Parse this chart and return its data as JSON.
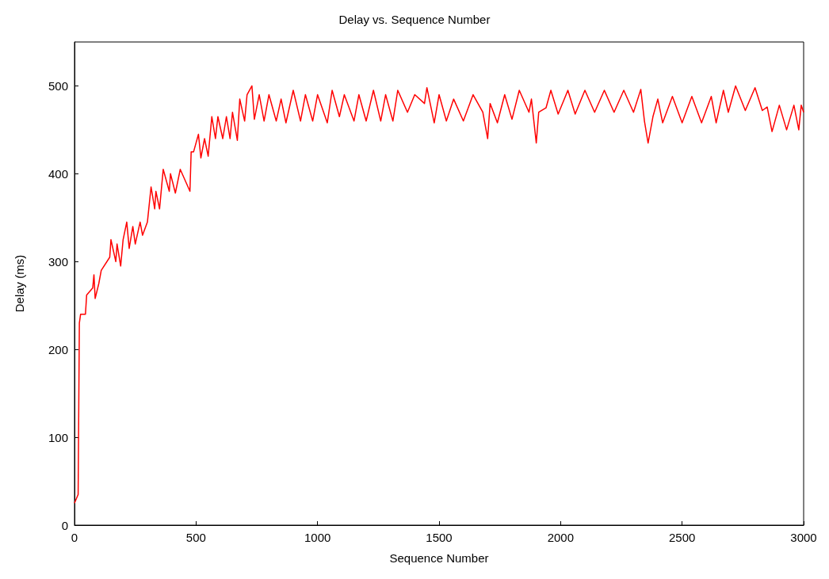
{
  "chart_data": {
    "type": "line",
    "title": "Delay vs. Sequence Number",
    "xlabel": "Sequence Number",
    "ylabel": "Delay (ms)",
    "xlim": [
      0,
      3000
    ],
    "xticks": [
      0,
      500,
      1000,
      1500,
      2000,
      2500,
      3000
    ],
    "ylim": [
      0,
      550
    ],
    "yticks": [
      0,
      100,
      200,
      300,
      400,
      500
    ],
    "grid": false,
    "marker": "none",
    "line_style": "solid",
    "series": [
      {
        "color": "#ff0000",
        "x": [
          0,
          15,
          20,
          25,
          45,
          50,
          75,
          80,
          85,
          100,
          110,
          145,
          150,
          170,
          175,
          190,
          200,
          215,
          225,
          240,
          250,
          270,
          280,
          300,
          315,
          330,
          335,
          350,
          365,
          390,
          395,
          415,
          435,
          475,
          480,
          490,
          510,
          520,
          535,
          550,
          565,
          580,
          590,
          610,
          625,
          640,
          650,
          670,
          680,
          700,
          710,
          730,
          740,
          760,
          780,
          800,
          830,
          850,
          870,
          900,
          930,
          950,
          980,
          1000,
          1040,
          1060,
          1090,
          1110,
          1150,
          1170,
          1200,
          1230,
          1260,
          1280,
          1310,
          1330,
          1370,
          1400,
          1440,
          1450,
          1480,
          1500,
          1530,
          1560,
          1600,
          1640,
          1680,
          1700,
          1710,
          1740,
          1770,
          1800,
          1830,
          1870,
          1880,
          1900,
          1910,
          1940,
          1960,
          1990,
          2030,
          2060,
          2100,
          2140,
          2180,
          2220,
          2260,
          2300,
          2330,
          2345,
          2360,
          2380,
          2400,
          2420,
          2460,
          2500,
          2540,
          2580,
          2620,
          2640,
          2670,
          2690,
          2720,
          2760,
          2800,
          2830,
          2850,
          2870,
          2900,
          2930,
          2960,
          2980,
          2990,
          3000
        ],
        "values": [
          25,
          35,
          230,
          240,
          240,
          262,
          270,
          285,
          258,
          275,
          290,
          305,
          325,
          300,
          320,
          295,
          325,
          345,
          315,
          340,
          320,
          345,
          330,
          345,
          385,
          360,
          380,
          360,
          405,
          380,
          400,
          378,
          405,
          380,
          425,
          425,
          445,
          418,
          440,
          420,
          465,
          440,
          465,
          440,
          465,
          440,
          470,
          438,
          485,
          460,
          490,
          500,
          462,
          490,
          460,
          490,
          460,
          485,
          458,
          495,
          460,
          490,
          460,
          490,
          458,
          495,
          465,
          490,
          460,
          490,
          460,
          495,
          460,
          490,
          460,
          495,
          470,
          490,
          480,
          498,
          458,
          490,
          460,
          485,
          460,
          490,
          470,
          440,
          480,
          458,
          490,
          462,
          495,
          470,
          485,
          435,
          470,
          475,
          495,
          468,
          495,
          468,
          495,
          470,
          495,
          470,
          495,
          470,
          496,
          460,
          435,
          465,
          485,
          458,
          488,
          458,
          488,
          458,
          488,
          458,
          495,
          470,
          500,
          472,
          498,
          472,
          476,
          448,
          478,
          450,
          478,
          450,
          478,
          470
        ]
      }
    ]
  }
}
